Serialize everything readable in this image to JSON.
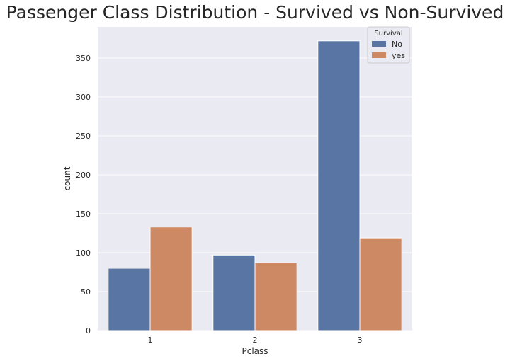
{
  "chart_data": {
    "type": "bar",
    "title": "Passenger Class Distribution - Survived vs Non-Survived",
    "xlabel": "Pclass",
    "ylabel": "count",
    "categories": [
      "1",
      "2",
      "3"
    ],
    "series": [
      {
        "name": "No",
        "values": [
          80,
          97,
          372
        ],
        "color": "#5875a4"
      },
      {
        "name": "yes",
        "values": [
          133,
          87,
          119
        ],
        "color": "#cc8963"
      }
    ],
    "ylim": [
      0,
      390
    ],
    "yticks": [
      0,
      50,
      100,
      150,
      200,
      250,
      300,
      350
    ],
    "legend": {
      "title": "Survival",
      "placement": "top-right"
    },
    "grid": true,
    "background_color": "#eaeaf2",
    "grid_color": "#ffffff"
  }
}
